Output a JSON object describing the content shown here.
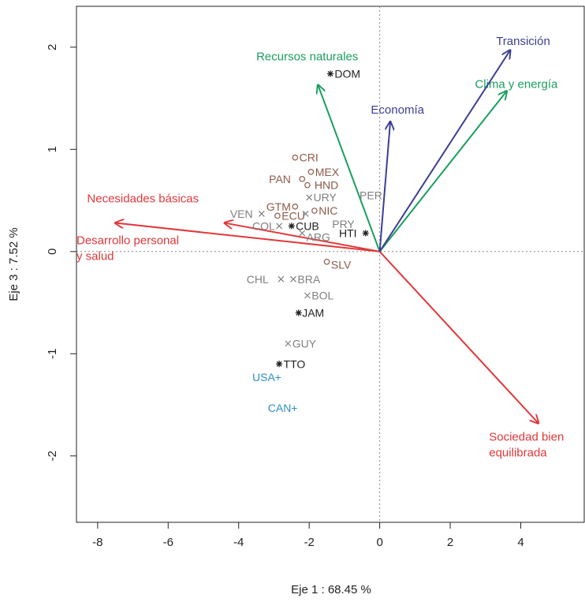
{
  "chart_data": {
    "type": "scatter",
    "subtype": "biplot",
    "xlabel": "Eje 1 : 68.45 %",
    "ylabel": "Eje 3 : 7.52 %",
    "xlim": [
      -8.6,
      5.8
    ],
    "ylim": [
      -2.65,
      2.4
    ],
    "x_ticks": [
      -8,
      -6,
      -4,
      -2,
      0,
      2,
      4
    ],
    "y_ticks": [
      -2,
      -1,
      0,
      1,
      2
    ],
    "reference_lines": {
      "x": 0,
      "y": 0,
      "style": "dotted"
    },
    "grid": false,
    "colors": {
      "red": "#e2373a",
      "green": "#1a9e5c",
      "blue": "#3b3f94",
      "cyan": "#2a8fc7",
      "brown": "#8c5a4a",
      "gray": "#7f7f7f",
      "black": "#222222"
    },
    "arrows": [
      {
        "label": "Necesidades básicas",
        "x": -4.4,
        "y": 0.28,
        "color": "#e2373a",
        "label_x": -8.3,
        "label_y": 0.48,
        "anchor": "start"
      },
      {
        "label": "Desarrollo personal\ny salud",
        "x": -7.5,
        "y": 0.28,
        "color": "#e2373a",
        "label_x": -8.6,
        "label_y": 0.07,
        "anchor": "start"
      },
      {
        "label": "Sociedad bien\nequilibrada",
        "x": 4.5,
        "y": -1.68,
        "color": "#e2373a",
        "label_x": 3.1,
        "label_y": -1.85,
        "anchor": "start"
      },
      {
        "label": "Recursos naturales",
        "x": -1.75,
        "y": 1.63,
        "color": "#1a9e5c",
        "label_x": -3.5,
        "label_y": 1.87,
        "anchor": "start"
      },
      {
        "label": "Clima y energía",
        "x": 3.6,
        "y": 1.57,
        "color": "#1a9e5c",
        "label_x": 2.7,
        "label_y": 1.6,
        "anchor": "start"
      },
      {
        "label": "Economía",
        "x": 0.3,
        "y": 1.27,
        "color": "#3b3f94",
        "label_x": -0.25,
        "label_y": 1.35,
        "anchor": "start"
      },
      {
        "label": "Transición",
        "x": 3.7,
        "y": 1.97,
        "color": "#3b3f94",
        "label_x": 3.3,
        "label_y": 2.02,
        "anchor": "start"
      }
    ],
    "points": [
      {
        "label": "DOM",
        "x": -1.4,
        "y": 1.74,
        "marker": "star",
        "color": "#222222",
        "label_dx": 0.12,
        "label_dy": 0
      },
      {
        "label": "CRI",
        "x": -2.4,
        "y": 0.92,
        "marker": "circle",
        "color": "#8c5a4a",
        "label_dx": 0.12,
        "label_dy": 0
      },
      {
        "label": "MEX",
        "x": -1.95,
        "y": 0.78,
        "marker": "circle",
        "color": "#8c5a4a",
        "label_dx": 0.12,
        "label_dy": 0
      },
      {
        "label": "PAN",
        "x": -2.2,
        "y": 0.71,
        "marker": "circle",
        "color": "#8c5a4a",
        "label_dx": -0.32,
        "label_dy": 0,
        "label_anchor": "end"
      },
      {
        "label": "HND",
        "x": -2.05,
        "y": 0.65,
        "marker": "circle",
        "color": "#8c5a4a",
        "label_dx": 0.2,
        "label_dy": 0
      },
      {
        "label": "URY",
        "x": -2.0,
        "y": 0.53,
        "marker": "cross",
        "color": "#7f7f7f",
        "label_dx": 0.12,
        "label_dy": 0
      },
      {
        "label": "PER",
        "x": -0.25,
        "y": 0.55,
        "marker": "none",
        "color": "#7f7f7f",
        "label_dx": 0,
        "label_dy": 0,
        "label_anchor": "middle"
      },
      {
        "label": "GTM",
        "x": -2.4,
        "y": 0.44,
        "marker": "circle",
        "color": "#8c5a4a",
        "label_dx": -0.12,
        "label_dy": 0,
        "label_anchor": "end"
      },
      {
        "label": "NIC",
        "x": -1.85,
        "y": 0.4,
        "marker": "circle",
        "color": "#8c5a4a",
        "label_dx": 0.12,
        "label_dy": 0
      },
      {
        "label": "VEN",
        "x": -3.35,
        "y": 0.37,
        "marker": "cross",
        "color": "#7f7f7f",
        "label_dx": -0.25,
        "label_dy": 0,
        "label_anchor": "end"
      },
      {
        "label": "ECU",
        "x": -2.9,
        "y": 0.35,
        "marker": "circle",
        "color": "#8c5a4a",
        "label_dx": 0.12,
        "label_dy": 0
      },
      {
        "label": "PRY",
        "x": -2.1,
        "y": 0.37,
        "marker": "cross",
        "color": "#7f7f7f",
        "label_dx": 0.75,
        "label_dy": -0.1
      },
      {
        "label": "COL",
        "x": -2.85,
        "y": 0.25,
        "marker": "cross",
        "color": "#7f7f7f",
        "label_dx": -0.12,
        "label_dy": 0,
        "label_anchor": "end"
      },
      {
        "label": "CUB",
        "x": -2.5,
        "y": 0.25,
        "marker": "star",
        "color": "#222222",
        "label_dx": 0.12,
        "label_dy": 0
      },
      {
        "label": "ARG",
        "x": -2.2,
        "y": 0.18,
        "marker": "cross",
        "color": "#7f7f7f",
        "label_dx": 0.12,
        "label_dy": -0.04
      },
      {
        "label": "HTI",
        "x": -0.4,
        "y": 0.18,
        "marker": "star",
        "color": "#222222",
        "label_dx": -0.25,
        "label_dy": 0,
        "label_anchor": "end"
      },
      {
        "label": "SLV",
        "x": -1.5,
        "y": -0.1,
        "marker": "circle",
        "color": "#8c5a4a",
        "label_dx": 0.12,
        "label_dy": -0.03
      },
      {
        "label": "CHL",
        "x": -2.8,
        "y": -0.27,
        "marker": "cross",
        "color": "#7f7f7f",
        "label_dx": -0.35,
        "label_dy": 0,
        "label_anchor": "end"
      },
      {
        "label": "BRA",
        "x": -2.45,
        "y": -0.27,
        "marker": "cross",
        "color": "#7f7f7f",
        "label_dx": 0.12,
        "label_dy": 0
      },
      {
        "label": "BOL",
        "x": -2.05,
        "y": -0.43,
        "marker": "cross",
        "color": "#7f7f7f",
        "label_dx": 0.12,
        "label_dy": 0
      },
      {
        "label": "JAM",
        "x": -2.3,
        "y": -0.6,
        "marker": "star",
        "color": "#222222",
        "label_dx": 0.1,
        "label_dy": 0
      },
      {
        "label": "GUY",
        "x": -2.6,
        "y": -0.9,
        "marker": "cross",
        "color": "#7f7f7f",
        "label_dx": 0.12,
        "label_dy": 0
      },
      {
        "label": "TTO",
        "x": -2.85,
        "y": -1.1,
        "marker": "star",
        "color": "#222222",
        "label_dx": 0.12,
        "label_dy": 0
      },
      {
        "label": "USA+",
        "x": -3.2,
        "y": -1.23,
        "marker": "none",
        "color": "#2a8fc7",
        "label_dx": 0,
        "label_dy": 0,
        "label_anchor": "middle"
      },
      {
        "label": "CAN+",
        "x": -2.75,
        "y": -1.53,
        "marker": "none",
        "color": "#2a8fc7",
        "label_dx": 0,
        "label_dy": 0,
        "label_anchor": "middle"
      }
    ]
  }
}
